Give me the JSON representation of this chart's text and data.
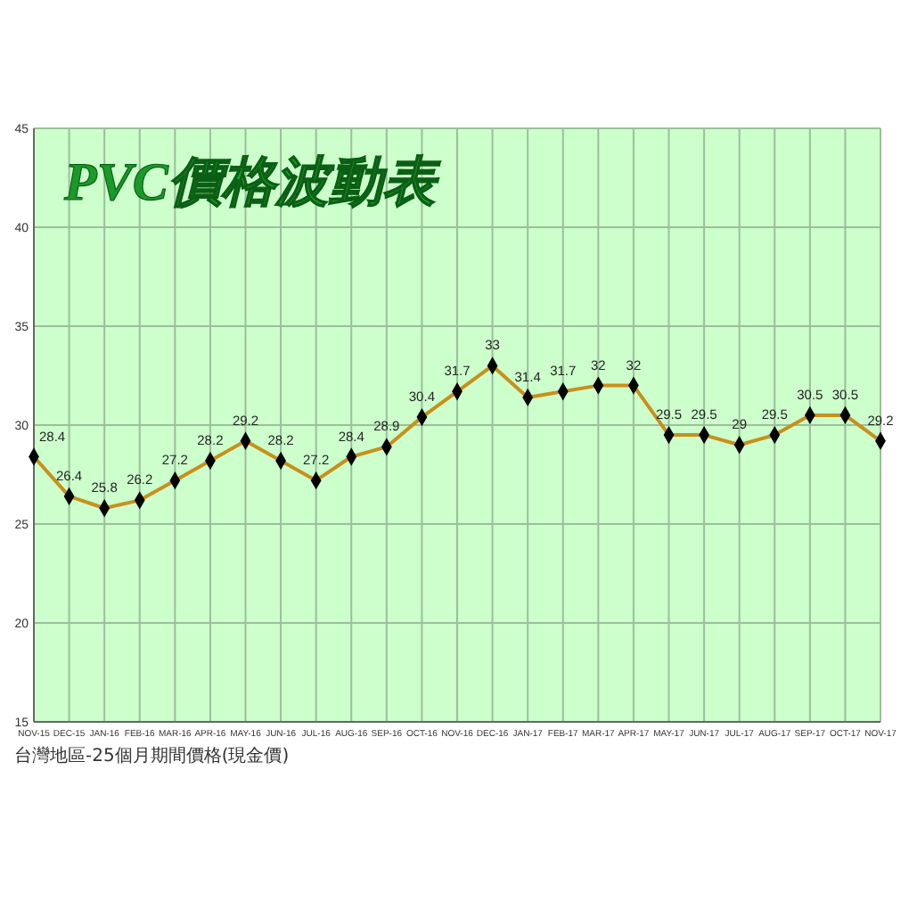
{
  "chart_data": {
    "type": "line",
    "title": "PVC價格波動表",
    "categories": [
      "NOV-15",
      "DEC-15",
      "JAN-16",
      "FEB-16",
      "MAR-16",
      "APR-16",
      "MAY-16",
      "JUN-16",
      "JUL-16",
      "AUG-16",
      "SEP-16",
      "OCT-16",
      "NOV-16",
      "DEC-16",
      "JAN-17",
      "FEB-17",
      "MAR-17",
      "APR-17",
      "MAY-17",
      "JUN-17",
      "JUL-17",
      "AUG-17",
      "SEP-17",
      "OCT-17",
      "NOV-17"
    ],
    "series": [
      {
        "color": "#c8901a",
        "values": [
          28.4,
          26.4,
          25.8,
          26.2,
          27.2,
          28.2,
          29.2,
          28.2,
          27.2,
          28.4,
          28.9,
          30.4,
          31.7,
          33,
          31.4,
          31.7,
          32,
          32,
          29.5,
          29.5,
          29,
          29.5,
          30.5,
          30.5,
          29.2
        ]
      }
    ],
    "ylim": [
      15,
      45
    ],
    "yticks": [
      15,
      20,
      25,
      30,
      35,
      40,
      45
    ],
    "grid": true,
    "marker": "diamond",
    "data_labels": true,
    "annotations": [
      "台灣地區-25個月期間價格(現金價)"
    ]
  }
}
